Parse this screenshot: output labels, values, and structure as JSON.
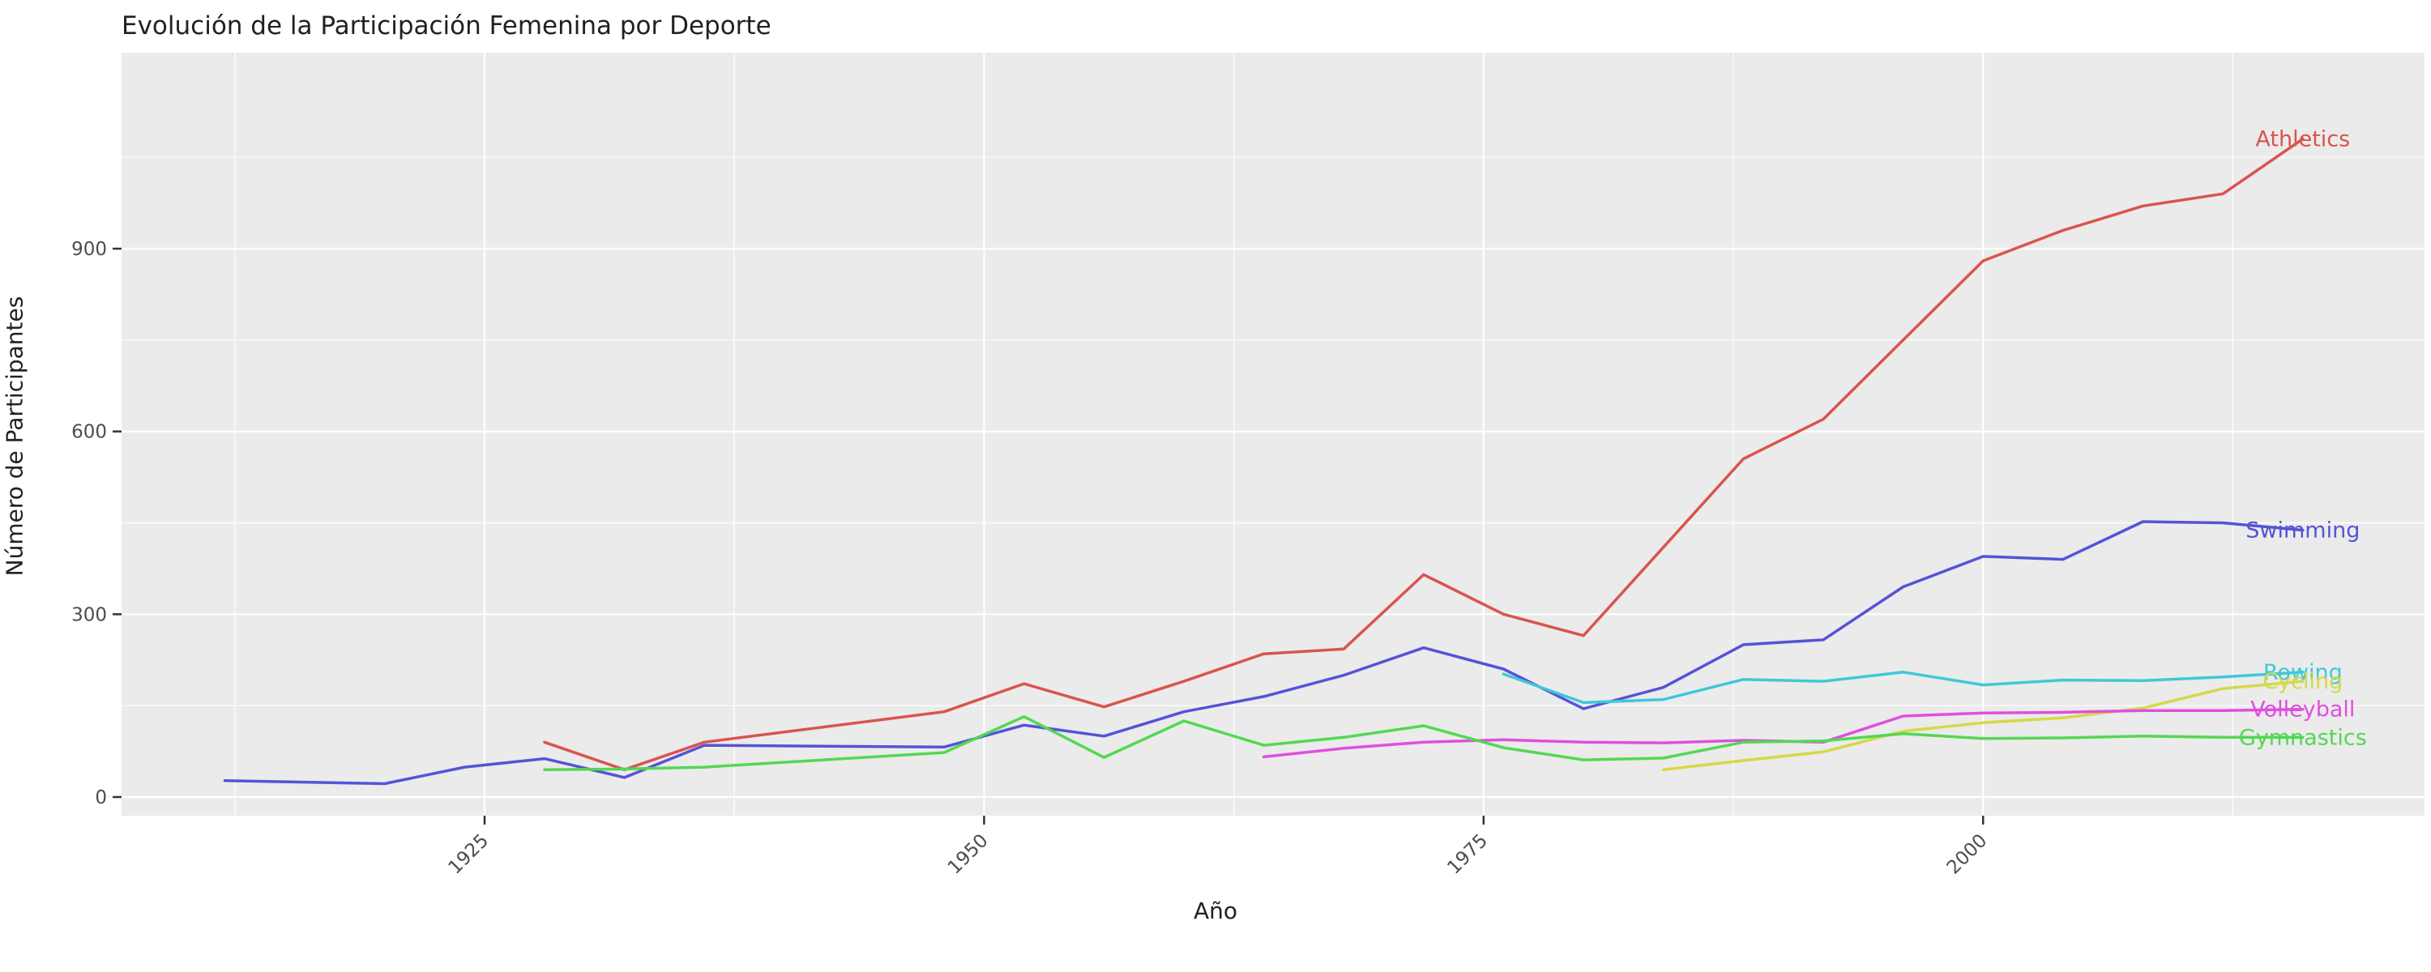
{
  "title": "Evolución de la Participación Femenina por Deporte",
  "chart_data": {
    "type": "line",
    "title": "Evolución de la Participación Femenina por Deporte",
    "xlabel": "Año",
    "ylabel": "Número de Participantes",
    "grid": true,
    "legend_position": "direct-labels-right",
    "panel_bg": "#ebebeb",
    "grid_color": "#ffffff",
    "tick_color": "#333333",
    "tick_label_color": "#4d4d4d",
    "xlim": [
      1906.8,
      2022.0
    ],
    "ylim": [
      -30,
      1222
    ],
    "x_ticks": [
      1925,
      1950,
      1975,
      2000
    ],
    "x_minor_ticks": [
      1912.5,
      1937.5,
      1962.5,
      1987.5,
      2012.5
    ],
    "y_ticks": [
      0,
      300,
      600,
      900
    ],
    "y_minor_ticks": [
      150,
      450,
      750,
      1050
    ],
    "x": [
      1912,
      1920,
      1924,
      1928,
      1932,
      1936,
      1948,
      1952,
      1956,
      1960,
      1964,
      1968,
      1972,
      1976,
      1980,
      1984,
      1988,
      1992,
      1996,
      2000,
      2004,
      2008,
      2012,
      2016
    ],
    "series": [
      {
        "name": "Athletics",
        "color": "#d9544e",
        "values": [
          null,
          null,
          null,
          90,
          45,
          90,
          140,
          186,
          148,
          190,
          235,
          243,
          365,
          300,
          265,
          410,
          555,
          620,
          750,
          880,
          930,
          970,
          990,
          1080
        ]
      },
      {
        "name": "Swimming",
        "color": "#5553d7",
        "values": [
          27,
          22,
          49,
          63,
          32,
          85,
          82,
          118,
          100,
          140,
          165,
          200,
          245,
          210,
          145,
          180,
          250,
          258,
          345,
          395,
          390,
          452,
          450,
          438
        ]
      },
      {
        "name": "Rowing",
        "color": "#3fc8d8",
        "values": [
          null,
          null,
          null,
          null,
          null,
          null,
          null,
          null,
          null,
          null,
          null,
          null,
          null,
          202,
          155,
          160,
          193,
          190,
          205,
          184,
          192,
          191,
          197,
          205
        ]
      },
      {
        "name": "Cycling",
        "color": "#d5d948",
        "values": [
          null,
          null,
          null,
          null,
          null,
          null,
          null,
          null,
          null,
          null,
          null,
          null,
          null,
          null,
          null,
          45,
          60,
          74,
          108,
          122,
          130,
          146,
          178,
          190
        ]
      },
      {
        "name": "Volleyball",
        "color": "#df4fdf",
        "values": [
          null,
          null,
          null,
          null,
          null,
          null,
          null,
          null,
          null,
          null,
          66,
          80,
          90,
          94,
          90,
          89,
          93,
          90,
          133,
          138,
          139,
          142,
          142,
          144
        ]
      },
      {
        "name": "Gymnastics",
        "color": "#52d852",
        "values": [
          null,
          null,
          null,
          45,
          46,
          49,
          73,
          132,
          65,
          125,
          85,
          98,
          117,
          81,
          61,
          64,
          90,
          92,
          104,
          96,
          97,
          100,
          98,
          98
        ]
      }
    ]
  }
}
